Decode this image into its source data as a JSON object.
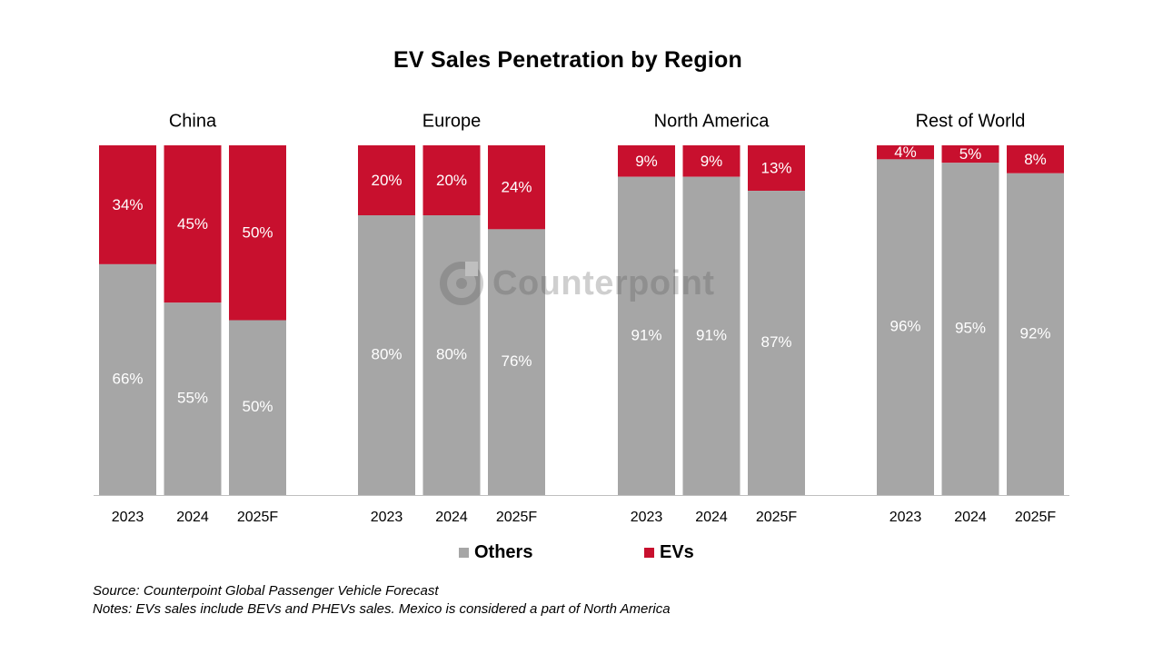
{
  "chart_data": {
    "type": "bar",
    "stacked": true,
    "title": "EV Sales Penetration by Region",
    "groups": [
      {
        "region": "China",
        "categories": [
          "2023",
          "2024",
          "2025F"
        ],
        "others": [
          66,
          55,
          50
        ],
        "evs": [
          34,
          45,
          50
        ]
      },
      {
        "region": "Europe",
        "categories": [
          "2023",
          "2024",
          "2025F"
        ],
        "others": [
          80,
          80,
          76
        ],
        "evs": [
          20,
          20,
          24
        ]
      },
      {
        "region": "North America",
        "categories": [
          "2023",
          "2024",
          "2025F"
        ],
        "others": [
          91,
          91,
          87
        ],
        "evs": [
          9,
          9,
          13
        ]
      },
      {
        "region": "Rest of World",
        "categories": [
          "2023",
          "2024",
          "2025F"
        ],
        "others": [
          96,
          95,
          92
        ],
        "evs": [
          4,
          5,
          8
        ]
      }
    ],
    "series": [
      {
        "name": "Others",
        "color": "#A6A6A6"
      },
      {
        "name": "EVs",
        "color": "#C8102E"
      }
    ],
    "ylim": [
      0,
      100
    ],
    "value_suffix": "%",
    "legend_position": "bottom"
  },
  "legend": {
    "others_label": "Others",
    "evs_label": "EVs"
  },
  "source": "Source: Counterpoint Global Passenger Vehicle Forecast",
  "notes": "Notes: EVs sales include BEVs and PHEVs sales. Mexico is considered a part of North America",
  "watermark": "Counterpoint"
}
